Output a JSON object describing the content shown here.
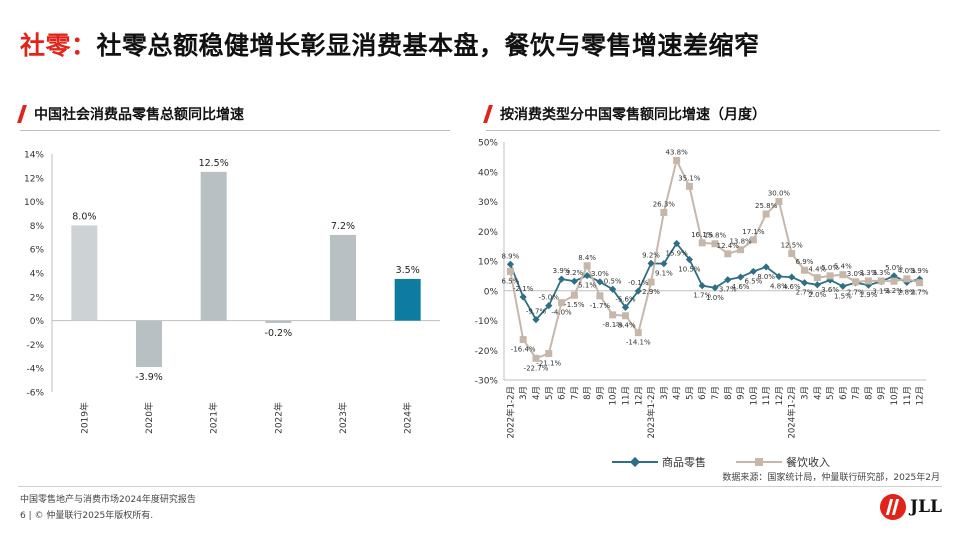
{
  "header": {
    "title_accent": "社零：",
    "title_main": "社零总额稳健增长彰显消费基本盘，餐饮与零售增速差缩窄"
  },
  "colors": {
    "accent_red": "#e2231a",
    "bar_gray": "#b8c0c4",
    "bar_light": "#cdd2d5",
    "bar_blue": "#0e7ca0",
    "retail_line": "#2f6f85",
    "catering_line": "#c7b7ab"
  },
  "left_panel": {
    "title": "中国社会消费品零售总额同比增速"
  },
  "right_panel": {
    "title": "按消费类型分中国零售额同比增速（月度）"
  },
  "chart_data": [
    {
      "type": "bar",
      "title": "中国社会消费品零售总额同比增速",
      "categories": [
        "2019年",
        "2020年",
        "2021年",
        "2022年",
        "2023年",
        "2024年"
      ],
      "values": [
        8.0,
        -3.9,
        12.5,
        -0.2,
        7.2,
        3.5
      ],
      "value_labels": [
        "8.0%",
        "-3.9%",
        "12.5%",
        "-0.2%",
        "7.2%",
        "3.5%"
      ],
      "ylim": [
        -6,
        14
      ],
      "yticks": [
        -6,
        -4,
        -2,
        0,
        2,
        4,
        6,
        8,
        10,
        12,
        14
      ],
      "ytick_labels": [
        "-6%",
        "-4%",
        "-2%",
        "0%",
        "2%",
        "4%",
        "6%",
        "8%",
        "10%",
        "12%",
        "14%"
      ],
      "highlight_index": 5,
      "grid": false
    },
    {
      "type": "line",
      "title": "按消费类型分中国零售额同比增速（月度）",
      "x": [
        "2022年1-2月",
        "3月",
        "4月",
        "5月",
        "6月",
        "7月",
        "8月",
        "9月",
        "10月",
        "11月",
        "12月",
        "2023年1-2月",
        "3月",
        "4月",
        "5月",
        "6月",
        "7月",
        "8月",
        "9月",
        "10月",
        "11月",
        "12月",
        "2024年1-2月",
        "3月",
        "4月",
        "5月",
        "6月",
        "7月",
        "8月",
        "9月",
        "10月",
        "11月",
        "12月"
      ],
      "ylim": [
        -30,
        50
      ],
      "yticks": [
        -30,
        -20,
        -10,
        0,
        10,
        20,
        30,
        40,
        50
      ],
      "ytick_labels": [
        "-30%",
        "-20%",
        "-10%",
        "0%",
        "10%",
        "20%",
        "30%",
        "40%",
        "50%"
      ],
      "series": [
        {
          "name": "商品零售",
          "color": "#2f6f85",
          "marker": "diamond",
          "values": [
            8.9,
            -2.1,
            -9.7,
            -5.0,
            3.9,
            3.2,
            5.1,
            3.0,
            0.5,
            -5.6,
            -0.1,
            9.2,
            9.1,
            15.9,
            10.5,
            1.7,
            1.0,
            3.7,
            4.6,
            6.5,
            8.0,
            4.8,
            4.6,
            2.7,
            2.0,
            3.6,
            1.5,
            2.7,
            1.9,
            3.1,
            5.0,
            2.8,
            3.9
          ],
          "labels": [
            "8.9%",
            "-2.1%",
            "-9.7%",
            "-5.0%",
            "3.9%",
            "3.2%",
            "5.1%",
            "3.0%",
            "0.5%",
            "-5.6%",
            "-0.1%",
            "9.2%",
            "9.1%",
            "15.9%",
            "10.5%",
            "1.7%",
            "1.0%",
            "3.7%",
            "4.6%",
            "6.5%",
            "8.0%",
            "4.8%",
            "4.6%",
            "2.7%",
            "2.0%",
            "3.6%",
            "1.5%",
            "2.7%",
            "1.9%",
            "3.1%",
            "5.0%",
            "2.8%",
            "3.9%"
          ]
        },
        {
          "name": "餐饮收入",
          "color": "#c7b7ab",
          "marker": "square",
          "values": [
            6.5,
            -16.4,
            -22.7,
            -21.1,
            -4.0,
            -1.5,
            8.4,
            -1.7,
            -8.1,
            -8.4,
            -14.1,
            2.9,
            26.3,
            43.8,
            35.1,
            16.1,
            15.8,
            12.4,
            13.8,
            17.1,
            25.8,
            30.0,
            12.5,
            6.9,
            4.4,
            5.0,
            5.4,
            3.0,
            3.3,
            3.3,
            3.2,
            4.0,
            2.7
          ],
          "labels": [
            "6.5%",
            "-16.4%",
            "-22.7%",
            "-21.1%",
            "-4.0%",
            "-1.5%",
            "8.4%",
            "-1.7%",
            "-8.1%",
            "-8.4%",
            "-14.1%",
            "2.9%",
            "26.3%",
            "43.8%",
            "35.1%",
            "16.1%",
            "15.8%",
            "12.4%",
            "13.8%",
            "17.1%",
            "25.8%",
            "30.0%",
            "12.5%",
            "6.9%",
            "4.4%",
            "5.0%",
            "5.4%",
            "3.0%",
            "3.3%",
            "3.3%",
            "3.2%",
            "4.0%",
            "2.7%"
          ]
        }
      ],
      "legend": "bottom",
      "grid": false
    }
  ],
  "source": "数据来源：国家统计局，仲量联行研究部，2025年2月",
  "footer": {
    "report": "中国零售地产与消费市场2024年度研究报告",
    "page": "6",
    "copyright": "© 仲量联行2025年版权所有."
  },
  "logo": {
    "text": "JLL"
  }
}
